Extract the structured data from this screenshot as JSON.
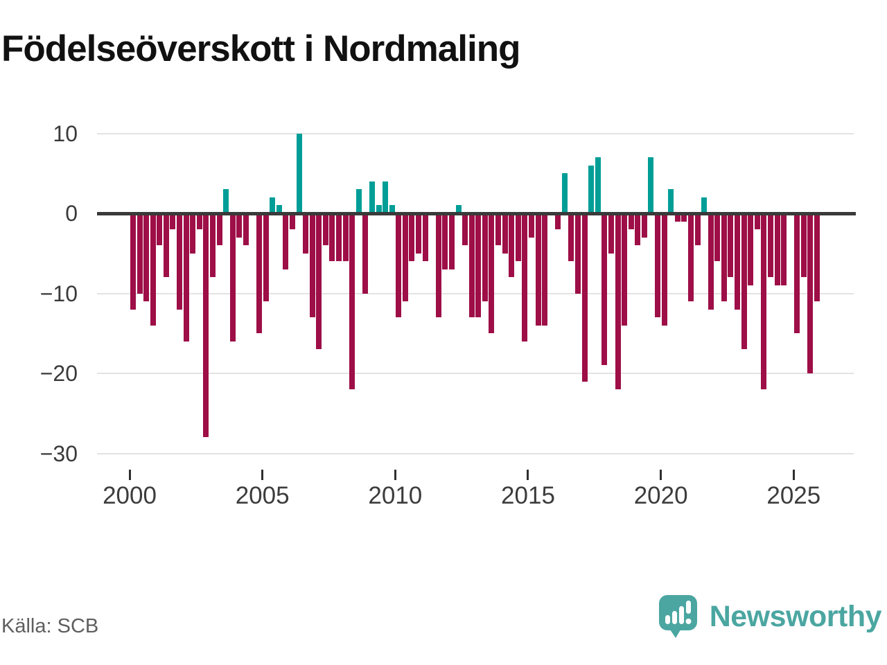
{
  "title": "Födelseöverskott i Nordmaling",
  "source": "Källa: SCB",
  "logo": {
    "text": "Newsworthy",
    "icon": "speech-bubble-bar-chart-icon"
  },
  "colors": {
    "positive": "#009e97",
    "negative": "#9e0e47",
    "logo_teal": "#4ba6a1",
    "gridline": "#e3e3e3",
    "zero_line": "#3a3a3a",
    "title_text": "#111111",
    "axis_text": "#3c3c3c",
    "source_text": "#5e5e5e"
  },
  "chart_data": {
    "type": "bar",
    "title": "Födelseöverskott i Nordmaling",
    "xlabel": "",
    "ylabel": "",
    "frequency": "quarterly",
    "ylim": [
      -30,
      10
    ],
    "grid": true,
    "legend": "none",
    "y_axis": {
      "ticks": [
        {
          "value": 10,
          "label": "10"
        },
        {
          "value": 0,
          "label": "0"
        },
        {
          "value": -10,
          "label": "−10"
        },
        {
          "value": -20,
          "label": "−20"
        },
        {
          "value": -30,
          "label": "−30"
        }
      ]
    },
    "x_axis": {
      "ticks": [
        {
          "year": 2000,
          "label": "2000"
        },
        {
          "year": 2005,
          "label": "2005"
        },
        {
          "year": 2010,
          "label": "2010"
        },
        {
          "year": 2015,
          "label": "2015"
        },
        {
          "year": 2020,
          "label": "2020"
        },
        {
          "year": 2025,
          "label": "2025"
        }
      ]
    },
    "series": [
      {
        "year": 2000,
        "values": [
          -12,
          -10,
          -11,
          -14
        ]
      },
      {
        "year": 2001,
        "values": [
          -4,
          -8,
          -2,
          -12
        ]
      },
      {
        "year": 2002,
        "values": [
          -16,
          -5,
          -2,
          -28
        ]
      },
      {
        "year": 2003,
        "values": [
          -8,
          -4,
          3,
          -16
        ]
      },
      {
        "year": 2004,
        "values": [
          -3,
          -4,
          0,
          -15
        ]
      },
      {
        "year": 2005,
        "values": [
          -11,
          2,
          1,
          -7
        ]
      },
      {
        "year": 2006,
        "values": [
          -2,
          10,
          -5,
          -13
        ]
      },
      {
        "year": 2007,
        "values": [
          -17,
          -4,
          -6,
          -6
        ]
      },
      {
        "year": 2008,
        "values": [
          -6,
          -22,
          3,
          -10
        ]
      },
      {
        "year": 2009,
        "values": [
          4,
          1,
          4,
          1
        ]
      },
      {
        "year": 2010,
        "values": [
          -13,
          -11,
          -6,
          -5
        ]
      },
      {
        "year": 2011,
        "values": [
          -6,
          0,
          -13,
          -7
        ]
      },
      {
        "year": 2012,
        "values": [
          -7,
          1,
          -4,
          -13
        ]
      },
      {
        "year": 2013,
        "values": [
          -13,
          -11,
          -15,
          -4
        ]
      },
      {
        "year": 2014,
        "values": [
          -5,
          -8,
          -6,
          -16
        ]
      },
      {
        "year": 2015,
        "values": [
          -3,
          -14,
          -14,
          0
        ]
      },
      {
        "year": 2016,
        "values": [
          -2,
          5,
          -6,
          -10
        ]
      },
      {
        "year": 2017,
        "values": [
          -21,
          6,
          7,
          -19
        ]
      },
      {
        "year": 2018,
        "values": [
          -5,
          -22,
          -14,
          -2
        ]
      },
      {
        "year": 2019,
        "values": [
          -4,
          -3,
          7,
          -13
        ]
      },
      {
        "year": 2020,
        "values": [
          -14,
          3,
          -1,
          -1
        ]
      },
      {
        "year": 2021,
        "values": [
          -11,
          -4,
          2,
          -12
        ]
      },
      {
        "year": 2022,
        "values": [
          -6,
          -11,
          -8,
          -12
        ]
      },
      {
        "year": 2023,
        "values": [
          -17,
          -9,
          -2,
          -22
        ]
      },
      {
        "year": 2024,
        "values": [
          -8,
          -9,
          -9,
          0
        ]
      },
      {
        "year": 2025,
        "values": [
          -15,
          -8,
          -20,
          -11
        ]
      }
    ]
  }
}
